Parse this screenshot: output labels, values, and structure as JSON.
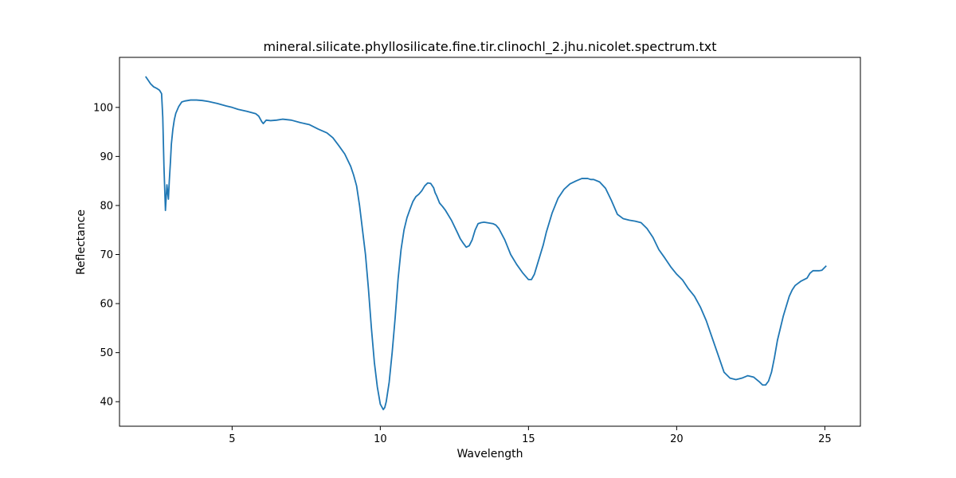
{
  "chart_data": {
    "type": "line",
    "title": "mineral.silicate.phyllosilicate.fine.tir.clinochl_2.jhu.nicolet.spectrum.txt",
    "xlabel": "Wavelength",
    "ylabel": "Reflectance",
    "xlim": [
      1.2,
      26.2
    ],
    "ylim": [
      35.0,
      110.2
    ],
    "xticks": [
      5,
      10,
      15,
      20,
      25
    ],
    "yticks": [
      40,
      50,
      60,
      70,
      80,
      90,
      100
    ],
    "grid": false,
    "legend": "none",
    "series": [
      {
        "color": "#1f77b4",
        "x": [
          2.08,
          2.15,
          2.25,
          2.35,
          2.45,
          2.55,
          2.62,
          2.66,
          2.7,
          2.75,
          2.8,
          2.85,
          2.88,
          2.92,
          2.95,
          3.0,
          3.05,
          3.1,
          3.2,
          3.3,
          3.4,
          3.5,
          3.6,
          3.8,
          4.0,
          4.2,
          4.5,
          4.8,
          5.0,
          5.2,
          5.5,
          5.8,
          5.9,
          6.0,
          6.05,
          6.15,
          6.3,
          6.5,
          6.7,
          7.0,
          7.3,
          7.6,
          7.9,
          8.2,
          8.4,
          8.6,
          8.8,
          9.0,
          9.1,
          9.2,
          9.3,
          9.4,
          9.5,
          9.6,
          9.7,
          9.8,
          9.9,
          10.0,
          10.1,
          10.15,
          10.2,
          10.3,
          10.4,
          10.5,
          10.6,
          10.7,
          10.8,
          10.9,
          11.0,
          11.1,
          11.2,
          11.3,
          11.4,
          11.5,
          11.6,
          11.7,
          11.8,
          11.85,
          11.9,
          12.0,
          12.1,
          12.2,
          12.4,
          12.6,
          12.7,
          12.8,
          12.9,
          13.0,
          13.1,
          13.2,
          13.3,
          13.4,
          13.5,
          13.6,
          13.7,
          13.8,
          13.9,
          14.0,
          14.2,
          14.4,
          14.6,
          14.8,
          15.0,
          15.1,
          15.2,
          15.3,
          15.4,
          15.5,
          15.6,
          15.8,
          16.0,
          16.2,
          16.4,
          16.6,
          16.8,
          17.0,
          17.1,
          17.2,
          17.4,
          17.6,
          17.8,
          18.0,
          18.2,
          18.4,
          18.6,
          18.8,
          19.0,
          19.2,
          19.4,
          19.6,
          19.8,
          20.0,
          20.2,
          20.4,
          20.6,
          20.8,
          21.0,
          21.2,
          21.4,
          21.6,
          21.8,
          22.0,
          22.2,
          22.4,
          22.6,
          22.8,
          22.9,
          23.0,
          23.1,
          23.2,
          23.3,
          23.4,
          23.5,
          23.6,
          23.7,
          23.8,
          23.9,
          24.0,
          24.2,
          24.4,
          24.5,
          24.6,
          24.8,
          24.9,
          25.05
        ],
        "y": [
          106.3,
          105.7,
          104.8,
          104.2,
          103.9,
          103.5,
          102.8,
          98.0,
          88.0,
          79.0,
          84.2,
          81.3,
          85.0,
          89.0,
          92.5,
          95.5,
          97.5,
          98.8,
          100.2,
          101.1,
          101.3,
          101.4,
          101.5,
          101.5,
          101.4,
          101.2,
          100.8,
          100.3,
          100.0,
          99.6,
          99.2,
          98.7,
          98.2,
          97.1,
          96.7,
          97.4,
          97.3,
          97.4,
          97.6,
          97.4,
          96.9,
          96.5,
          95.6,
          94.8,
          93.8,
          92.2,
          90.5,
          88.0,
          86.2,
          84.0,
          80.0,
          75.0,
          70.0,
          63.0,
          55.0,
          48.0,
          43.0,
          39.5,
          38.4,
          38.8,
          40.0,
          44.0,
          50.0,
          57.0,
          65.0,
          71.0,
          75.0,
          77.5,
          79.2,
          80.8,
          81.8,
          82.3,
          83.0,
          84.0,
          84.6,
          84.5,
          83.6,
          82.6,
          82.0,
          80.5,
          79.8,
          79.0,
          77.0,
          74.5,
          73.2,
          72.3,
          71.5,
          71.8,
          73.0,
          75.0,
          76.3,
          76.5,
          76.6,
          76.5,
          76.4,
          76.3,
          76.0,
          75.3,
          73.0,
          70.0,
          68.0,
          66.3,
          64.9,
          64.9,
          66.0,
          68.0,
          70.0,
          72.0,
          74.5,
          78.5,
          81.5,
          83.3,
          84.4,
          85.0,
          85.5,
          85.5,
          85.3,
          85.3,
          84.8,
          83.5,
          81.0,
          78.2,
          77.3,
          77.0,
          76.8,
          76.5,
          75.3,
          73.5,
          71.0,
          69.3,
          67.5,
          66.0,
          64.8,
          63.0,
          61.5,
          59.3,
          56.5,
          53.0,
          49.5,
          46.0,
          44.8,
          44.5,
          44.8,
          45.3,
          45.0,
          44.0,
          43.4,
          43.4,
          44.2,
          46.0,
          49.0,
          52.5,
          55.0,
          57.5,
          59.5,
          61.5,
          62.8,
          63.7,
          64.6,
          65.2,
          66.2,
          66.7,
          66.7,
          66.8,
          67.7
        ]
      }
    ]
  }
}
